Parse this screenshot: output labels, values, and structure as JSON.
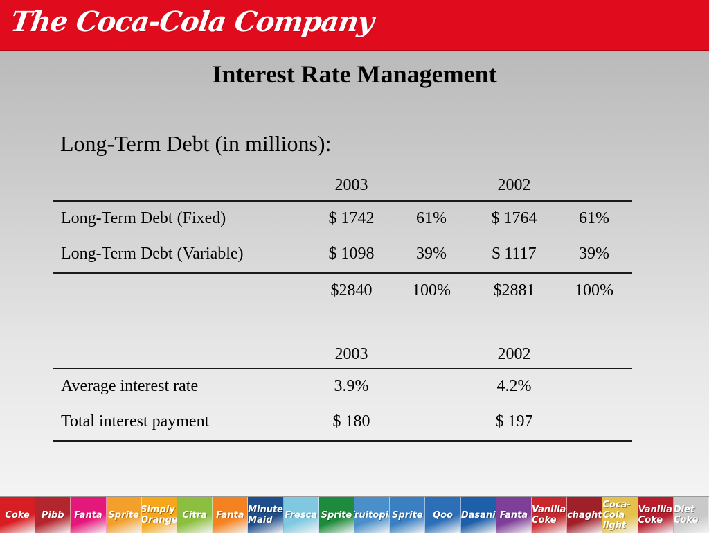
{
  "header": {
    "brand_text": "The Coca-Cola Company"
  },
  "slide": {
    "title": "Interest Rate Management",
    "subtitle": "Long-Term Debt (in millions):"
  },
  "debt_table": {
    "years": [
      "2003",
      "2002"
    ],
    "rows": [
      {
        "label": "Long-Term Debt (Fixed)",
        "amt_2003": "$ 1742",
        "pct_2003": "61%",
        "amt_2002": "$ 1764",
        "pct_2002": "61%"
      },
      {
        "label": "Long-Term Debt (Variable)",
        "amt_2003": "$ 1098",
        "pct_2003": "39%",
        "amt_2002": "$ 1117",
        "pct_2002": "39%"
      }
    ],
    "totals": {
      "amt_2003": "$2840",
      "pct_2003": "100%",
      "amt_2002": "$2881",
      "pct_2002": "100%"
    }
  },
  "rate_table": {
    "years": [
      "2003",
      "2002"
    ],
    "rows": [
      {
        "label": "Average interest rate",
        "v2003": "3.9%",
        "v2002": "4.2%"
      },
      {
        "label": "Total interest payment",
        "v2003": "$ 180",
        "v2002": "$ 197"
      }
    ]
  },
  "brand_strip": [
    {
      "name": "Coke",
      "color": "#d81e23"
    },
    {
      "name": "Pibb",
      "color": "#b3262e"
    },
    {
      "name": "Fanta",
      "color": "#e4187a"
    },
    {
      "name": "Sprite",
      "color": "#f2a02b"
    },
    {
      "name": "Simply Orange",
      "color": "#f6a619"
    },
    {
      "name": "Citra",
      "color": "#8cbf3f"
    },
    {
      "name": "Fanta",
      "color": "#f58220"
    },
    {
      "name": "Minute Maid",
      "color": "#1f4e8c"
    },
    {
      "name": "Fresca",
      "color": "#7fc8e0"
    },
    {
      "name": "Sprite",
      "color": "#1e8a3c"
    },
    {
      "name": "Fruitopia",
      "color": "#4a8fc9"
    },
    {
      "name": "Sprite",
      "color": "#3a7fc1"
    },
    {
      "name": "Qoo",
      "color": "#2c6fb7"
    },
    {
      "name": "Dasani",
      "color": "#1d5fa8"
    },
    {
      "name": "Fanta",
      "color": "#7d3f98"
    },
    {
      "name": "Vanilla Coke",
      "color": "#c8282d"
    },
    {
      "name": "chaght",
      "color": "#a0202a"
    },
    {
      "name": "Coca-Cola light",
      "color": "#e3c14a"
    },
    {
      "name": "Vanilla Coke",
      "color": "#b81d2c"
    },
    {
      "name": "Diet Coke",
      "color": "#c9c9c9"
    }
  ]
}
